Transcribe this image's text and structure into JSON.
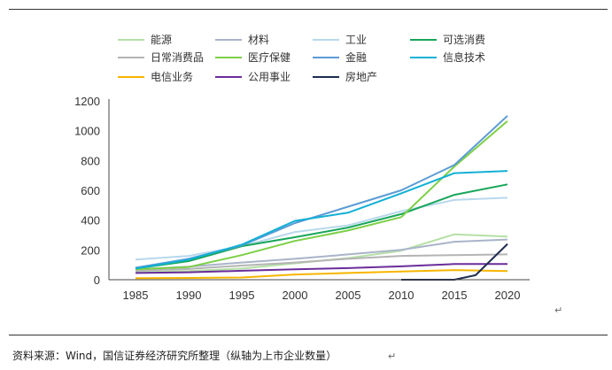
{
  "chart_data": {
    "type": "line",
    "x": [
      1985,
      1990,
      1995,
      2000,
      2005,
      2010,
      2015,
      2020
    ],
    "ylim": [
      0,
      1200
    ],
    "yticks": [
      0,
      200,
      400,
      600,
      800,
      1000,
      1200
    ],
    "xticks": [
      1985,
      1990,
      1995,
      2000,
      2005,
      2010,
      2015,
      2020
    ],
    "legend_position": "top",
    "grid": false,
    "series": [
      {
        "name": "能源",
        "color": "#b5e0a6",
        "values": [
          50,
          58,
          75,
          110,
          145,
          195,
          305,
          290
        ]
      },
      {
        "name": "材料",
        "color": "#a9b4c9",
        "values": [
          70,
          88,
          115,
          140,
          170,
          200,
          255,
          270
        ]
      },
      {
        "name": "工业",
        "color": "#b8d8ec",
        "values": [
          135,
          160,
          225,
          320,
          365,
          460,
          535,
          550
        ]
      },
      {
        "name": "可选消费",
        "color": "#17a65a",
        "values": [
          75,
          125,
          225,
          285,
          350,
          440,
          570,
          640
        ]
      },
      {
        "name": "日常消费品",
        "color": "#b4b4b4",
        "values": [
          60,
          72,
          95,
          115,
          140,
          160,
          165,
          170
        ]
      },
      {
        "name": "医疗保健",
        "color": "#7ccf45",
        "values": [
          70,
          85,
          165,
          260,
          330,
          420,
          760,
          1065
        ]
      },
      {
        "name": "金融",
        "color": "#5b9bd5",
        "values": [
          80,
          140,
          230,
          380,
          490,
          600,
          770,
          1100
        ]
      },
      {
        "name": "信息技术",
        "color": "#13b0d6",
        "values": [
          75,
          135,
          235,
          395,
          450,
          580,
          715,
          730
        ]
      },
      {
        "name": "电信业务",
        "color": "#f7b500",
        "values": [
          10,
          12,
          15,
          35,
          45,
          55,
          65,
          58
        ]
      },
      {
        "name": "公用事业",
        "color": "#6a2c9a",
        "values": [
          45,
          50,
          60,
          70,
          78,
          90,
          105,
          105
        ]
      },
      {
        "name": "房地产",
        "color": "#1f2d50",
        "x": [
          2010,
          2015,
          2017,
          2020
        ],
        "values": [
          0,
          0,
          30,
          240
        ]
      }
    ]
  },
  "source_note": "资料来源：Wind，国信证券经济研究所整理（纵轴为上市企业数量）",
  "paragraph_marks": [
    "↵",
    "↵"
  ]
}
